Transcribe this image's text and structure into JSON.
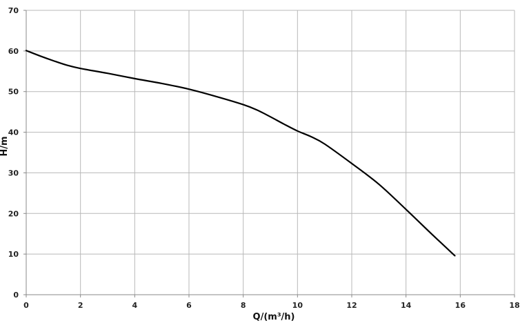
{
  "chart_data": {
    "type": "line",
    "title": "",
    "xlabel": "Q/(m³/h)",
    "ylabel": "H/m",
    "xlim": [
      0,
      18
    ],
    "ylim": [
      0,
      70
    ],
    "x_ticks": [
      "0",
      "2",
      "4",
      "6",
      "8",
      "10",
      "12",
      "14",
      "16",
      "18"
    ],
    "y_ticks": [
      "0",
      "10",
      "20",
      "30",
      "40",
      "50",
      "60",
      "70"
    ],
    "grid": true,
    "legend": "none",
    "colors": {
      "line": "#000000",
      "grid": "#b8b8b8",
      "axis": "#888888"
    },
    "series": [
      {
        "x": [
          0,
          0.5,
          1,
          1.5,
          2,
          3,
          4,
          5,
          6,
          7,
          8,
          8.5,
          9,
          9.5,
          10,
          10.5,
          11,
          12,
          13,
          14,
          15,
          15.8
        ],
        "y": [
          60.1,
          58.8,
          57.6,
          56.5,
          55.7,
          54.5,
          53.2,
          52,
          50.6,
          48.8,
          46.8,
          45.5,
          43.8,
          42,
          40.3,
          38.9,
          37.1,
          32.3,
          27.2,
          21,
          14.6,
          9.6
        ]
      }
    ]
  }
}
